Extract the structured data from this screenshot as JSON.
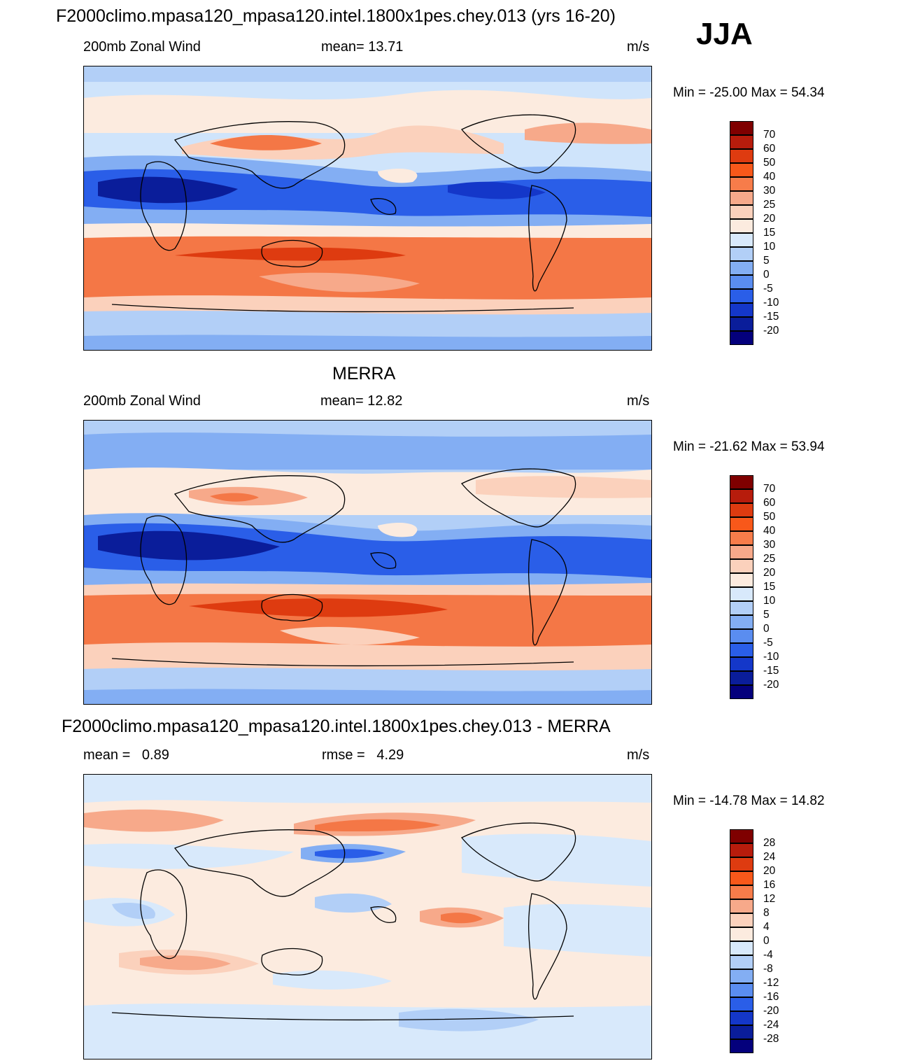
{
  "season": "JJA",
  "panels": [
    {
      "id": "model",
      "title": "F2000climo.mpasa120_mpasa120.intel.1800x1pes.chey.013 (yrs 16-20)",
      "left_label": "200mb Zonal Wind",
      "center_label": "mean=  13.71",
      "right_label": "m/s",
      "minmax": "Min = -25.00 Max =  54.34",
      "colorbar_labels": [
        "70",
        "60",
        "50",
        "40",
        "30",
        "25",
        "20",
        "15",
        "10",
        "5",
        "0",
        "-5",
        "-10",
        "-15",
        "-20"
      ]
    },
    {
      "id": "obs",
      "title": "MERRA",
      "left_label": "200mb Zonal Wind",
      "center_label": "mean=  12.82",
      "right_label": "m/s",
      "minmax": "Min = -21.62 Max =  53.94",
      "colorbar_labels": [
        "70",
        "60",
        "50",
        "40",
        "30",
        "25",
        "20",
        "15",
        "10",
        "5",
        "0",
        "-5",
        "-10",
        "-15",
        "-20"
      ]
    },
    {
      "id": "diff",
      "title": "F2000climo.mpasa120_mpasa120.intel.1800x1pes.chey.013 - MERRA",
      "left_label": "mean =   0.89",
      "center_label": "rmse =   4.29",
      "right_label": "m/s",
      "minmax": "Min = -14.78 Max =  14.82",
      "colorbar_labels": [
        "28",
        "24",
        "20",
        "16",
        "12",
        "8",
        "4",
        "0",
        "-4",
        "-8",
        "-12",
        "-16",
        "-20",
        "-24",
        "-28"
      ]
    }
  ],
  "colorbar_colors": [
    "#7f0000",
    "#b71c0c",
    "#de3b10",
    "#f8581a",
    "#f77c4a",
    "#f7a98a",
    "#fbd1bc",
    "#fcebdf",
    "#d8e9fb",
    "#b2cff7",
    "#83aef3",
    "#5a8df0",
    "#2a5ee8",
    "#1437c9",
    "#0a1d9a",
    "#04007c"
  ],
  "fills": {
    "strong_pos": "#de3b10",
    "pos": "#f47746",
    "mid_pos": "#f7a98a",
    "light_pos": "#fbd1bc",
    "faint_pos": "#fcebdf",
    "faint_neg": "#d8e9fb",
    "light_neg": "#b2cff7",
    "neg": "#83aef3",
    "mid_neg": "#5a8df0",
    "strong_neg": "#2a5ee8",
    "deep_neg": "#0a1d9a"
  }
}
